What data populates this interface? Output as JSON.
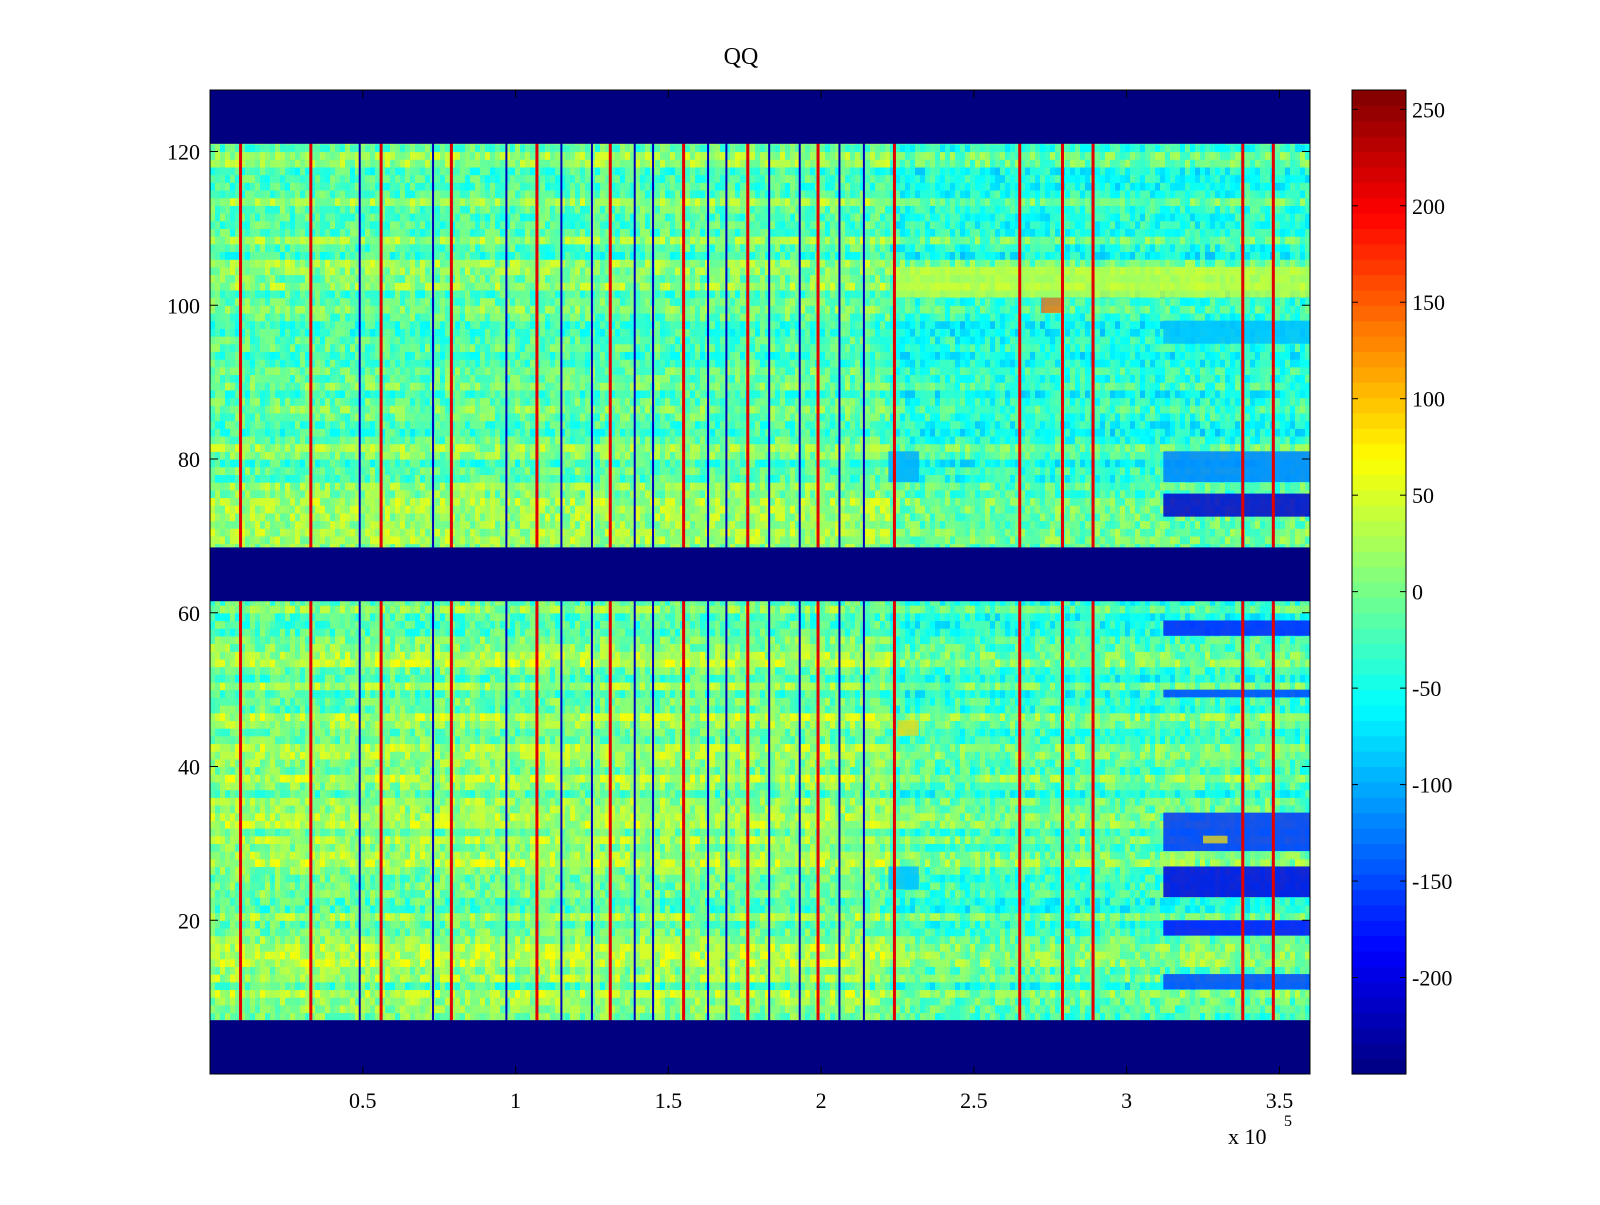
{
  "chart_data": {
    "type": "heatmap",
    "title": "QQ",
    "xlabel": "",
    "ylabel": "",
    "x_exponent_label": "x 10",
    "x_exponent_power": "5",
    "xlim": [
      0,
      3.6
    ],
    "ylim": [
      0,
      128
    ],
    "x_ticks": [
      {
        "value": 0.5,
        "label": "0.5"
      },
      {
        "value": 1,
        "label": "1"
      },
      {
        "value": 1.5,
        "label": "1.5"
      },
      {
        "value": 2,
        "label": "2"
      },
      {
        "value": 2.5,
        "label": "2.5"
      },
      {
        "value": 3,
        "label": "3"
      },
      {
        "value": 3.5,
        "label": "3.5"
      }
    ],
    "y_ticks": [
      {
        "value": 20,
        "label": "20"
      },
      {
        "value": 40,
        "label": "40"
      },
      {
        "value": 60,
        "label": "60"
      },
      {
        "value": 80,
        "label": "80"
      },
      {
        "value": 100,
        "label": "100"
      },
      {
        "value": 120,
        "label": "120"
      }
    ],
    "colorbar": {
      "colormap": "jet",
      "clim": [
        -250,
        260
      ],
      "ticks": [
        {
          "value": 250,
          "label": "250"
        },
        {
          "value": 200,
          "label": "200"
        },
        {
          "value": 150,
          "label": "150"
        },
        {
          "value": 100,
          "label": "100"
        },
        {
          "value": 50,
          "label": "50"
        },
        {
          "value": 0,
          "label": "0"
        },
        {
          "value": -50,
          "label": "-50"
        },
        {
          "value": -100,
          "label": "-100"
        },
        {
          "value": -150,
          "label": "-150"
        },
        {
          "value": -200,
          "label": "-200"
        }
      ]
    },
    "masked_row_bands": [
      [
        0,
        7
      ],
      [
        61.5,
        68.5
      ],
      [
        121,
        128
      ]
    ],
    "masked_value": -250,
    "background_value": 10,
    "vertical_hot_lines_x": [
      0.1,
      0.33,
      0.56,
      0.79,
      1.07,
      1.31,
      1.55,
      1.76,
      1.99,
      2.24,
      2.65,
      2.79,
      2.89,
      3.38,
      3.48
    ],
    "vertical_cold_lines_x": [
      0.49,
      0.73,
      0.97,
      1.15,
      1.25,
      1.39,
      1.45,
      1.63,
      1.69,
      1.83,
      1.93,
      2.06,
      2.14
    ],
    "low_value_patches": [
      {
        "x": [
          3.12,
          3.6
        ],
        "y": [
          72.5,
          75.5
        ],
        "value": -210
      },
      {
        "x": [
          3.12,
          3.6
        ],
        "y": [
          23,
          27
        ],
        "value": -200
      },
      {
        "x": [
          3.12,
          3.6
        ],
        "y": [
          29,
          34
        ],
        "value": -160
      },
      {
        "x": [
          3.12,
          3.6
        ],
        "y": [
          18,
          20
        ],
        "value": -180
      },
      {
        "x": [
          3.12,
          3.6
        ],
        "y": [
          57,
          59
        ],
        "value": -170
      },
      {
        "x": [
          3.12,
          3.6
        ],
        "y": [
          11,
          13
        ],
        "value": -150
      },
      {
        "x": [
          3.12,
          3.6
        ],
        "y": [
          49,
          50
        ],
        "value": -150
      },
      {
        "x": [
          3.12,
          3.6
        ],
        "y": [
          77,
          81
        ],
        "value": -120
      },
      {
        "x": [
          3.12,
          3.6
        ],
        "y": [
          95,
          98
        ],
        "value": -90
      },
      {
        "x": [
          2.22,
          2.32
        ],
        "y": [
          77,
          81
        ],
        "value": -100
      },
      {
        "x": [
          2.22,
          2.32
        ],
        "y": [
          24,
          27
        ],
        "value": -90
      }
    ],
    "high_value_patches": [
      {
        "x": [
          2.72,
          2.79
        ],
        "y": [
          99,
          101
        ],
        "value": 150
      },
      {
        "x": [
          2.25,
          2.32
        ],
        "y": [
          44,
          46
        ],
        "value": 90
      },
      {
        "x": [
          2.24,
          3.6
        ],
        "y": [
          101,
          105
        ],
        "value": 50
      },
      {
        "x": [
          3.25,
          3.33
        ],
        "y": [
          30,
          31
        ],
        "value": 80
      }
    ]
  }
}
